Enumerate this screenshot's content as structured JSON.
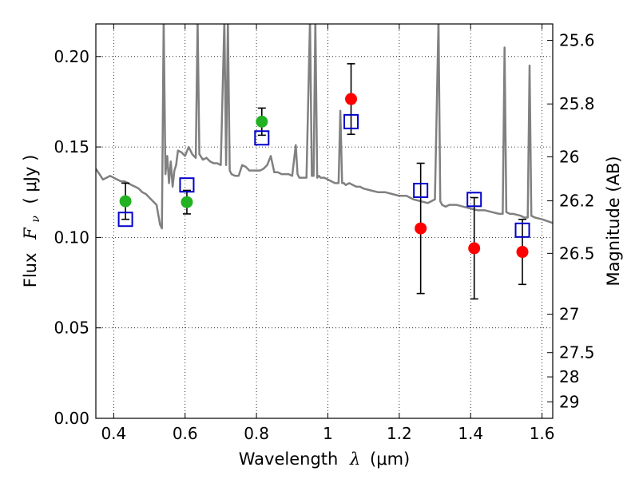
{
  "chart_data": {
    "type": "scatter",
    "xlabel": "Wavelength  λ (μm)",
    "ylabel": "Flux  F_ν  ( μJy )",
    "ylabel_parts": {
      "prefix": "Flux",
      "symbol": "F",
      "subscript": "ν",
      "unit": "( μJy )"
    },
    "xlabel_parts": {
      "prefix": "Wavelength",
      "symbol": "λ",
      "unit": "(μm)"
    },
    "right_ylabel": "Magnitude (AB)",
    "xlim": [
      0.35,
      1.63
    ],
    "ylim": [
      0.0,
      0.218
    ],
    "x_ticks": [
      {
        "value": 0.4,
        "label": "0.4"
      },
      {
        "value": 0.6,
        "label": "0.6"
      },
      {
        "value": 0.8,
        "label": "0.8"
      },
      {
        "value": 1.0,
        "label": "1"
      },
      {
        "value": 1.2,
        "label": "1.2"
      },
      {
        "value": 1.4,
        "label": "1.4"
      },
      {
        "value": 1.6,
        "label": "1.6"
      }
    ],
    "y_ticks": [
      {
        "value": 0.0,
        "label": "0.00"
      },
      {
        "value": 0.05,
        "label": "0.05"
      },
      {
        "value": 0.1,
        "label": "0.10"
      },
      {
        "value": 0.15,
        "label": "0.15"
      },
      {
        "value": 0.2,
        "label": "0.20"
      }
    ],
    "right_ticks": [
      {
        "label": "25.6",
        "value": 25.6
      },
      {
        "label": "25.8",
        "value": 25.8
      },
      {
        "label": "26",
        "value": 26.0
      },
      {
        "label": "26.2",
        "value": 26.2
      },
      {
        "label": "26.5",
        "value": 26.5
      },
      {
        "label": "27",
        "value": 27.0
      },
      {
        "label": "27.5",
        "value": 27.5
      },
      {
        "label": "28",
        "value": 28.0
      },
      {
        "label": "29",
        "value": 29.0
      }
    ],
    "grid": true,
    "series": [
      {
        "marker": "line",
        "color": "#808080",
        "x": [
          0.35,
          0.36,
          0.37,
          0.38,
          0.39,
          0.4,
          0.41,
          0.42,
          0.43,
          0.44,
          0.45,
          0.46,
          0.47,
          0.48,
          0.49,
          0.5,
          0.51,
          0.52,
          0.53,
          0.535,
          0.54,
          0.545,
          0.55,
          0.555,
          0.56,
          0.565,
          0.57,
          0.575,
          0.58,
          0.59,
          0.6,
          0.61,
          0.62,
          0.63,
          0.635,
          0.64,
          0.65,
          0.66,
          0.67,
          0.68,
          0.69,
          0.7,
          0.71,
          0.715,
          0.72,
          0.725,
          0.73,
          0.74,
          0.75,
          0.76,
          0.77,
          0.78,
          0.79,
          0.8,
          0.81,
          0.82,
          0.83,
          0.84,
          0.85,
          0.86,
          0.87,
          0.88,
          0.89,
          0.9,
          0.91,
          0.915,
          0.92,
          0.93,
          0.94,
          0.95,
          0.955,
          0.96,
          0.965,
          0.97,
          0.975,
          0.98,
          0.99,
          1.0,
          1.01,
          1.02,
          1.03,
          1.035,
          1.04,
          1.045,
          1.05,
          1.06,
          1.07,
          1.08,
          1.09,
          1.1,
          1.12,
          1.14,
          1.16,
          1.18,
          1.2,
          1.22,
          1.24,
          1.26,
          1.28,
          1.3,
          1.31,
          1.315,
          1.32,
          1.33,
          1.34,
          1.36,
          1.38,
          1.4,
          1.42,
          1.44,
          1.46,
          1.48,
          1.49,
          1.495,
          1.5,
          1.51,
          1.52,
          1.54,
          1.55,
          1.56,
          1.565,
          1.57,
          1.58,
          1.6,
          1.63
        ],
        "y": [
          0.138,
          0.135,
          0.132,
          0.133,
          0.134,
          0.133,
          0.132,
          0.131,
          0.131,
          0.13,
          0.129,
          0.128,
          0.127,
          0.125,
          0.124,
          0.122,
          0.12,
          0.118,
          0.107,
          0.105,
          0.22,
          0.135,
          0.145,
          0.13,
          0.142,
          0.128,
          0.137,
          0.14,
          0.148,
          0.147,
          0.145,
          0.15,
          0.146,
          0.144,
          0.22,
          0.146,
          0.143,
          0.144,
          0.142,
          0.141,
          0.141,
          0.14,
          0.22,
          0.14,
          0.22,
          0.137,
          0.135,
          0.134,
          0.134,
          0.14,
          0.139,
          0.137,
          0.137,
          0.137,
          0.137,
          0.138,
          0.14,
          0.145,
          0.136,
          0.136,
          0.135,
          0.135,
          0.135,
          0.134,
          0.151,
          0.135,
          0.133,
          0.133,
          0.133,
          0.22,
          0.134,
          0.134,
          0.22,
          0.133,
          0.134,
          0.133,
          0.133,
          0.132,
          0.131,
          0.13,
          0.13,
          0.17,
          0.13,
          0.13,
          0.129,
          0.13,
          0.129,
          0.128,
          0.128,
          0.127,
          0.126,
          0.125,
          0.125,
          0.124,
          0.123,
          0.123,
          0.121,
          0.12,
          0.119,
          0.121,
          0.22,
          0.12,
          0.118,
          0.117,
          0.118,
          0.118,
          0.117,
          0.116,
          0.115,
          0.115,
          0.114,
          0.113,
          0.113,
          0.205,
          0.114,
          0.113,
          0.113,
          0.112,
          0.111,
          0.111,
          0.195,
          0.112,
          0.111,
          0.11,
          0.108
        ]
      },
      {
        "marker": "circle",
        "color": "#22b222",
        "x": [
          0.433,
          0.605,
          0.815
        ],
        "y": [
          0.12,
          0.1195,
          0.164
        ],
        "err": [
          0.01,
          0.0065,
          0.0075
        ]
      },
      {
        "marker": "circle",
        "color": "#ff0000",
        "x": [
          1.065,
          1.26,
          1.41,
          1.545
        ],
        "y": [
          0.1765,
          0.105,
          0.094,
          0.092
        ],
        "err": [
          0.0195,
          0.036,
          0.028,
          0.018
        ]
      },
      {
        "marker": "square-open",
        "color": "#0000cc",
        "x": [
          0.433,
          0.605,
          0.815,
          1.065,
          1.26,
          1.41,
          1.545
        ],
        "y": [
          0.11,
          0.129,
          0.155,
          0.164,
          0.126,
          0.121,
          0.104
        ]
      }
    ]
  }
}
